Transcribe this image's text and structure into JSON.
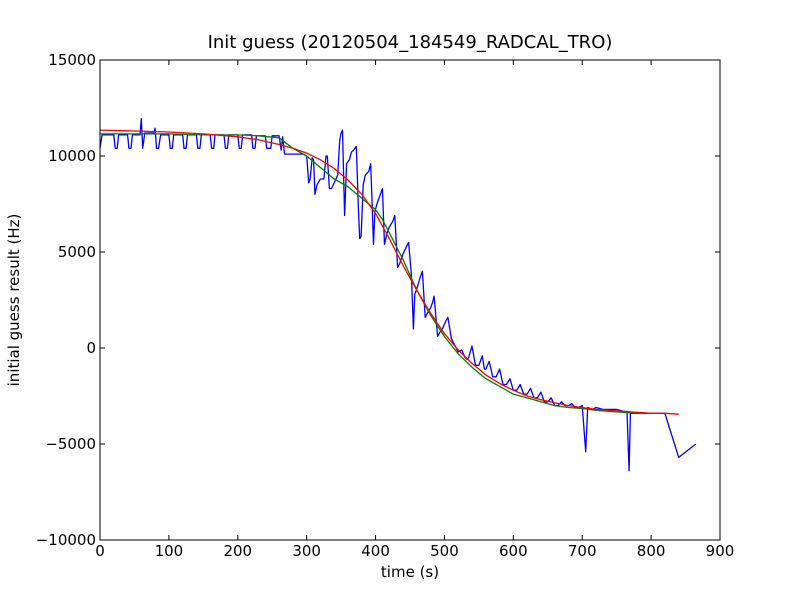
{
  "chart_data": {
    "type": "line",
    "title": "Init guess (20120504_184549_RADCAL_TRO)",
    "xlabel": "time (s)",
    "ylabel": "initial guess result (Hz)",
    "xlim": [
      0,
      900
    ],
    "ylim": [
      -10000,
      15000
    ],
    "x_ticks": [
      0,
      100,
      200,
      300,
      400,
      500,
      600,
      700,
      800,
      900
    ],
    "y_ticks": [
      -10000,
      -5000,
      0,
      5000,
      10000,
      15000
    ],
    "x_tick_labels": [
      "0",
      "100",
      "200",
      "300",
      "400",
      "500",
      "600",
      "700",
      "800",
      "900"
    ],
    "y_tick_labels": [
      "−10000",
      "−5000",
      "0",
      "5000",
      "10000",
      "15000"
    ],
    "grid": false,
    "legend": "none",
    "series": [
      {
        "color": "#0000ff",
        "points": [
          [
            0,
            10400
          ],
          [
            3,
            11100
          ],
          [
            20,
            11100
          ],
          [
            22,
            10400
          ],
          [
            25,
            10400
          ],
          [
            27,
            11100
          ],
          [
            40,
            11100
          ],
          [
            42,
            10400
          ],
          [
            45,
            10400
          ],
          [
            47,
            11100
          ],
          [
            58,
            11100
          ],
          [
            60,
            11950
          ],
          [
            62,
            10400
          ],
          [
            65,
            11200
          ],
          [
            78,
            11200
          ],
          [
            80,
            11450
          ],
          [
            82,
            10400
          ],
          [
            85,
            10400
          ],
          [
            88,
            11100
          ],
          [
            100,
            11100
          ],
          [
            102,
            10400
          ],
          [
            105,
            10400
          ],
          [
            107,
            11100
          ],
          [
            120,
            11100
          ],
          [
            122,
            10400
          ],
          [
            125,
            10400
          ],
          [
            127,
            11100
          ],
          [
            140,
            11100
          ],
          [
            142,
            10400
          ],
          [
            145,
            10400
          ],
          [
            147,
            11100
          ],
          [
            160,
            11100
          ],
          [
            162,
            10400
          ],
          [
            165,
            10400
          ],
          [
            167,
            11100
          ],
          [
            180,
            11100
          ],
          [
            182,
            10400
          ],
          [
            185,
            10400
          ],
          [
            187,
            11100
          ],
          [
            200,
            11100
          ],
          [
            202,
            10400
          ],
          [
            205,
            10400
          ],
          [
            207,
            11100
          ],
          [
            220,
            11100
          ],
          [
            222,
            10400
          ],
          [
            225,
            10400
          ],
          [
            227,
            11050
          ],
          [
            240,
            11050
          ],
          [
            242,
            10400
          ],
          [
            248,
            10400
          ],
          [
            250,
            11050
          ],
          [
            260,
            11050
          ],
          [
            263,
            10300
          ],
          [
            265,
            11000
          ],
          [
            268,
            10100
          ],
          [
            280,
            10100
          ],
          [
            295,
            10100
          ],
          [
            300,
            10000
          ],
          [
            303,
            8600
          ],
          [
            305,
            8800
          ],
          [
            308,
            9900
          ],
          [
            310,
            9800
          ],
          [
            312,
            8000
          ],
          [
            315,
            8500
          ],
          [
            320,
            8800
          ],
          [
            325,
            8800
          ],
          [
            328,
            10000
          ],
          [
            330,
            10000
          ],
          [
            333,
            8300
          ],
          [
            336,
            8300
          ],
          [
            340,
            8600
          ],
          [
            345,
            9000
          ],
          [
            348,
            10800
          ],
          [
            350,
            11200
          ],
          [
            352,
            11350
          ],
          [
            355,
            6900
          ],
          [
            358,
            9600
          ],
          [
            362,
            9800
          ],
          [
            365,
            10200
          ],
          [
            368,
            10300
          ],
          [
            372,
            10500
          ],
          [
            375,
            7400
          ],
          [
            377,
            5700
          ],
          [
            379,
            5800
          ],
          [
            382,
            8500
          ],
          [
            385,
            9000
          ],
          [
            390,
            9200
          ],
          [
            393,
            9600
          ],
          [
            397,
            5400
          ],
          [
            399,
            7100
          ],
          [
            402,
            7500
          ],
          [
            405,
            7800
          ],
          [
            408,
            8100
          ],
          [
            410,
            8300
          ],
          [
            413,
            5400
          ],
          [
            416,
            5900
          ],
          [
            420,
            6300
          ],
          [
            425,
            6600
          ],
          [
            428,
            6900
          ],
          [
            432,
            4200
          ],
          [
            435,
            4400
          ],
          [
            440,
            4900
          ],
          [
            445,
            5300
          ],
          [
            448,
            5500
          ],
          [
            452,
            3800
          ],
          [
            455,
            1000
          ],
          [
            457,
            2800
          ],
          [
            460,
            3100
          ],
          [
            465,
            3700
          ],
          [
            468,
            4000
          ],
          [
            472,
            1600
          ],
          [
            475,
            1800
          ],
          [
            480,
            2100
          ],
          [
            483,
            2400
          ],
          [
            485,
            2700
          ],
          [
            490,
            600
          ],
          [
            493,
            800
          ],
          [
            497,
            1000
          ],
          [
            502,
            1400
          ],
          [
            505,
            1600
          ],
          [
            510,
            500
          ],
          [
            520,
            -200
          ],
          [
            525,
            -100
          ],
          [
            530,
            -500
          ],
          [
            533,
            -600
          ],
          [
            535,
            -500
          ],
          [
            540,
            100
          ],
          [
            545,
            -900
          ],
          [
            548,
            -900
          ],
          [
            550,
            -900
          ],
          [
            555,
            -400
          ],
          [
            558,
            -1100
          ],
          [
            560,
            -1100
          ],
          [
            565,
            -700
          ],
          [
            570,
            -1500
          ],
          [
            575,
            -1500
          ],
          [
            580,
            -1100
          ],
          [
            585,
            -1900
          ],
          [
            590,
            -1900
          ],
          [
            595,
            -1600
          ],
          [
            600,
            -2200
          ],
          [
            605,
            -2200
          ],
          [
            610,
            -1900
          ],
          [
            615,
            -2400
          ],
          [
            620,
            -2400
          ],
          [
            625,
            -2100
          ],
          [
            630,
            -2600
          ],
          [
            635,
            -2600
          ],
          [
            640,
            -2300
          ],
          [
            645,
            -2800
          ],
          [
            650,
            -2800
          ],
          [
            655,
            -2600
          ],
          [
            660,
            -3000
          ],
          [
            665,
            -3000
          ],
          [
            670,
            -2800
          ],
          [
            675,
            -3000
          ],
          [
            680,
            -3000
          ],
          [
            685,
            -2900
          ],
          [
            690,
            -3100
          ],
          [
            695,
            -3100
          ],
          [
            700,
            -3000
          ],
          [
            705,
            -5400
          ],
          [
            708,
            -3100
          ],
          [
            715,
            -3200
          ],
          [
            720,
            -3100
          ],
          [
            730,
            -3200
          ],
          [
            740,
            -3200
          ],
          [
            750,
            -3200
          ],
          [
            760,
            -3300
          ],
          [
            765,
            -3300
          ],
          [
            768,
            -6400
          ],
          [
            770,
            -3400
          ],
          [
            780,
            -3400
          ],
          [
            800,
            -3400
          ],
          [
            820,
            -3400
          ],
          [
            840,
            -5700
          ],
          [
            865,
            -5000
          ]
        ]
      },
      {
        "color": "#008000",
        "points": [
          [
            0,
            11150
          ],
          [
            50,
            11150
          ],
          [
            100,
            11150
          ],
          [
            150,
            11100
          ],
          [
            200,
            11100
          ],
          [
            230,
            11050
          ],
          [
            260,
            10950
          ],
          [
            280,
            10400
          ],
          [
            300,
            10000
          ],
          [
            320,
            9400
          ],
          [
            340,
            8800
          ],
          [
            360,
            8400
          ],
          [
            380,
            7800
          ],
          [
            400,
            7200
          ],
          [
            410,
            6700
          ],
          [
            420,
            6000
          ],
          [
            440,
            4600
          ],
          [
            460,
            3000
          ],
          [
            480,
            1700
          ],
          [
            500,
            600
          ],
          [
            520,
            -300
          ],
          [
            540,
            -1000
          ],
          [
            560,
            -1600
          ],
          [
            580,
            -2000
          ],
          [
            600,
            -2400
          ],
          [
            620,
            -2600
          ],
          [
            640,
            -2800
          ],
          [
            660,
            -3000
          ],
          [
            680,
            -3100
          ],
          [
            700,
            -3150
          ],
          [
            720,
            -3250
          ],
          [
            740,
            -3300
          ],
          [
            760,
            -3350
          ],
          [
            780,
            -3400
          ],
          [
            800,
            -3400
          ],
          [
            820,
            -3400
          ]
        ]
      },
      {
        "color": "#ff0000",
        "points": [
          [
            0,
            11350
          ],
          [
            50,
            11300
          ],
          [
            100,
            11250
          ],
          [
            150,
            11150
          ],
          [
            200,
            11000
          ],
          [
            230,
            10850
          ],
          [
            260,
            10600
          ],
          [
            280,
            10400
          ],
          [
            300,
            10150
          ],
          [
            320,
            9800
          ],
          [
            340,
            9350
          ],
          [
            360,
            8750
          ],
          [
            380,
            8000
          ],
          [
            400,
            7000
          ],
          [
            420,
            5700
          ],
          [
            440,
            4300
          ],
          [
            460,
            3000
          ],
          [
            480,
            1800
          ],
          [
            500,
            750
          ],
          [
            520,
            -100
          ],
          [
            540,
            -800
          ],
          [
            560,
            -1400
          ],
          [
            580,
            -1850
          ],
          [
            600,
            -2200
          ],
          [
            620,
            -2500
          ],
          [
            640,
            -2700
          ],
          [
            660,
            -2850
          ],
          [
            680,
            -3000
          ],
          [
            700,
            -3100
          ],
          [
            720,
            -3200
          ],
          [
            740,
            -3250
          ],
          [
            760,
            -3300
          ],
          [
            780,
            -3350
          ],
          [
            800,
            -3400
          ],
          [
            820,
            -3400
          ],
          [
            840,
            -3450
          ]
        ]
      }
    ]
  }
}
